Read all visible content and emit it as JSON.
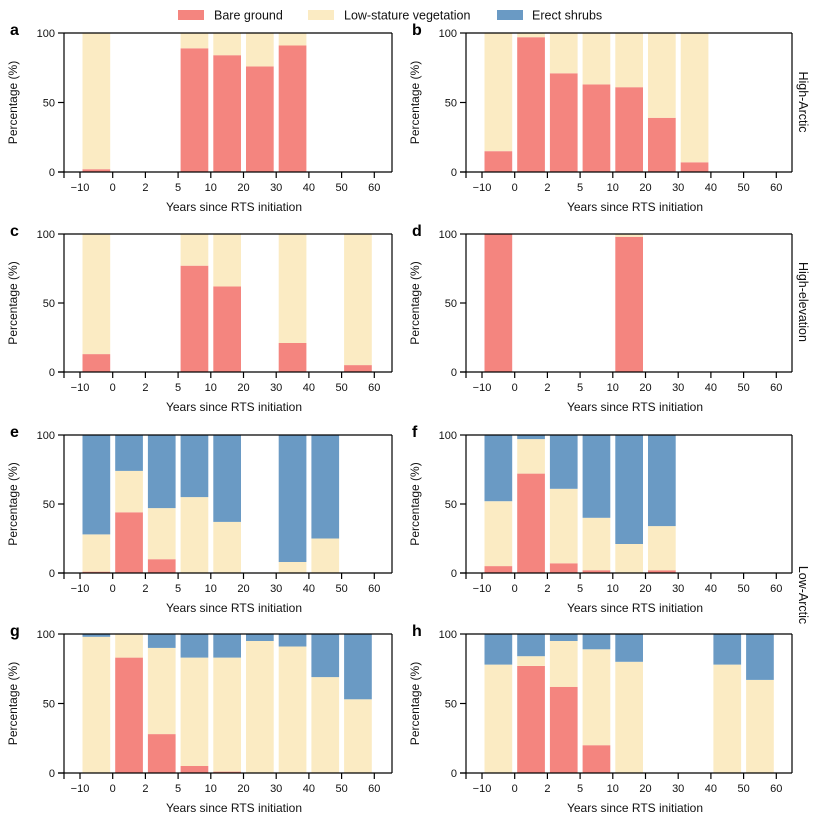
{
  "legend": [
    {
      "key": "bare",
      "label": "Bare ground",
      "color": "#f4857f"
    },
    {
      "key": "low",
      "label": "Low-stature vegetation",
      "color": "#fbebc3"
    },
    {
      "key": "shrub",
      "label": "Erect shrubs",
      "color": "#6a9ac4"
    }
  ],
  "row_labels": [
    "High-Arctic",
    "High-elevation",
    "Low-Arctic"
  ],
  "chart_data": [
    {
      "panel": "a",
      "type": "bar",
      "stacked": true,
      "title": "",
      "xlabel": "Years since RTS initiation",
      "ylabel": "Percentage (%)",
      "ylim": [
        0,
        100
      ],
      "yticks": [
        0,
        50,
        100
      ],
      "x_ticks": [
        "−10",
        "0",
        "2",
        "5",
        "10",
        "20",
        "30",
        "40",
        "50",
        "60"
      ],
      "categories": [
        "-10–0",
        "0–2",
        "2–5",
        "5–10",
        "10–20",
        "20–30",
        "30–40",
        "40–50",
        "50–60"
      ],
      "series": [
        {
          "name": "Bare ground",
          "values": [
            2,
            null,
            null,
            89,
            84,
            76,
            91,
            null,
            null
          ]
        },
        {
          "name": "Low-stature vegetation",
          "values": [
            98,
            null,
            null,
            11,
            16,
            24,
            9,
            null,
            null
          ]
        },
        {
          "name": "Erect shrubs",
          "values": [
            0,
            null,
            null,
            0,
            0,
            0,
            0,
            null,
            null
          ]
        }
      ]
    },
    {
      "panel": "b",
      "type": "bar",
      "stacked": true,
      "title": "",
      "xlabel": "Years since RTS initiation",
      "ylabel": "Percentage (%)",
      "ylim": [
        0,
        100
      ],
      "yticks": [
        0,
        50,
        100
      ],
      "x_ticks": [
        "−10",
        "0",
        "2",
        "5",
        "10",
        "20",
        "30",
        "40",
        "50",
        "60"
      ],
      "categories": [
        "-10–0",
        "0–2",
        "2–5",
        "5–10",
        "10–20",
        "20–30",
        "30–40",
        "40–50",
        "50–60"
      ],
      "series": [
        {
          "name": "Bare ground",
          "values": [
            15,
            97,
            71,
            63,
            61,
            39,
            7,
            null,
            null
          ]
        },
        {
          "name": "Low-stature vegetation",
          "values": [
            85,
            3,
            29,
            37,
            39,
            61,
            93,
            null,
            null
          ]
        },
        {
          "name": "Erect shrubs",
          "values": [
            0,
            0,
            0,
            0,
            0,
            0,
            0,
            null,
            null
          ]
        }
      ]
    },
    {
      "panel": "c",
      "type": "bar",
      "stacked": true,
      "title": "",
      "xlabel": "Years since RTS initiation",
      "ylabel": "Percentage (%)",
      "ylim": [
        0,
        100
      ],
      "yticks": [
        0,
        50,
        100
      ],
      "x_ticks": [
        "−10",
        "0",
        "2",
        "5",
        "10",
        "20",
        "30",
        "40",
        "50",
        "60"
      ],
      "categories": [
        "-10–0",
        "0–2",
        "2–5",
        "5–10",
        "10–20",
        "20–30",
        "30–40",
        "40–50",
        "50–60"
      ],
      "series": [
        {
          "name": "Bare ground",
          "values": [
            13,
            null,
            null,
            77,
            62,
            null,
            21,
            null,
            5
          ]
        },
        {
          "name": "Low-stature vegetation",
          "values": [
            87,
            null,
            null,
            23,
            38,
            null,
            79,
            null,
            95
          ]
        },
        {
          "name": "Erect shrubs",
          "values": [
            0,
            null,
            null,
            0,
            0,
            null,
            0,
            null,
            0
          ]
        }
      ]
    },
    {
      "panel": "d",
      "type": "bar",
      "stacked": true,
      "title": "",
      "xlabel": "Years since RTS initiation",
      "ylabel": "Percentage (%)",
      "ylim": [
        0,
        100
      ],
      "yticks": [
        0,
        50,
        100
      ],
      "x_ticks": [
        "−10",
        "0",
        "2",
        "5",
        "10",
        "20",
        "30",
        "40",
        "50",
        "60"
      ],
      "categories": [
        "-10–0",
        "0–2",
        "2–5",
        "5–10",
        "10–20",
        "20–30",
        "30–40",
        "40–50",
        "50–60"
      ],
      "series": [
        {
          "name": "Bare ground",
          "values": [
            100,
            null,
            null,
            null,
            98,
            null,
            null,
            null,
            null
          ]
        },
        {
          "name": "Low-stature vegetation",
          "values": [
            0,
            null,
            null,
            null,
            2,
            null,
            null,
            null,
            null
          ]
        },
        {
          "name": "Erect shrubs",
          "values": [
            0,
            null,
            null,
            null,
            0,
            null,
            null,
            null,
            null
          ]
        }
      ]
    },
    {
      "panel": "e",
      "type": "bar",
      "stacked": true,
      "title": "",
      "xlabel": "Years since RTS initiation",
      "ylabel": "Percentage (%)",
      "ylim": [
        0,
        100
      ],
      "yticks": [
        0,
        50,
        100
      ],
      "x_ticks": [
        "−10",
        "0",
        "2",
        "5",
        "10",
        "20",
        "30",
        "40",
        "50",
        "60"
      ],
      "categories": [
        "-10–0",
        "0–2",
        "2–5",
        "5–10",
        "10–20",
        "20–30",
        "30–40",
        "40–50",
        "50–60"
      ],
      "series": [
        {
          "name": "Bare ground",
          "values": [
            1,
            44,
            10,
            0,
            0,
            null,
            0,
            0,
            null
          ]
        },
        {
          "name": "Low-stature vegetation",
          "values": [
            27,
            30,
            37,
            55,
            37,
            null,
            8,
            25,
            null
          ]
        },
        {
          "name": "Erect shrubs",
          "values": [
            72,
            26,
            53,
            45,
            63,
            null,
            92,
            75,
            null
          ]
        }
      ]
    },
    {
      "panel": "f",
      "type": "bar",
      "stacked": true,
      "title": "",
      "xlabel": "Years since RTS initiation",
      "ylabel": "Percentage (%)",
      "ylim": [
        0,
        100
      ],
      "yticks": [
        0,
        50,
        100
      ],
      "x_ticks": [
        "−10",
        "0",
        "2",
        "5",
        "10",
        "20",
        "30",
        "40",
        "50",
        "60"
      ],
      "categories": [
        "-10–0",
        "0–2",
        "2–5",
        "5–10",
        "10–20",
        "20–30",
        "30–40",
        "40–50",
        "50–60"
      ],
      "series": [
        {
          "name": "Bare ground",
          "values": [
            5,
            72,
            7,
            2,
            0,
            2,
            null,
            null,
            null
          ]
        },
        {
          "name": "Low-stature vegetation",
          "values": [
            47,
            25,
            54,
            38,
            21,
            32,
            null,
            null,
            null
          ]
        },
        {
          "name": "Erect shrubs",
          "values": [
            48,
            3,
            39,
            60,
            79,
            66,
            null,
            null,
            null
          ]
        }
      ]
    },
    {
      "panel": "g",
      "type": "bar",
      "stacked": true,
      "title": "",
      "xlabel": "Years since RTS initiation",
      "ylabel": "Percentage (%)",
      "ylim": [
        0,
        100
      ],
      "yticks": [
        0,
        50,
        100
      ],
      "x_ticks": [
        "−10",
        "0",
        "2",
        "5",
        "10",
        "20",
        "30",
        "40",
        "50",
        "60"
      ],
      "categories": [
        "-10–0",
        "0–2",
        "2–5",
        "5–10",
        "10–20",
        "20–30",
        "30–40",
        "40–50",
        "50–60"
      ],
      "series": [
        {
          "name": "Bare ground",
          "values": [
            0,
            83,
            28,
            5,
            1,
            0,
            0,
            0,
            0
          ]
        },
        {
          "name": "Low-stature vegetation",
          "values": [
            98,
            17,
            62,
            78,
            82,
            95,
            91,
            69,
            53
          ]
        },
        {
          "name": "Erect shrubs",
          "values": [
            2,
            0,
            10,
            17,
            17,
            5,
            9,
            31,
            47
          ]
        }
      ]
    },
    {
      "panel": "h",
      "type": "bar",
      "stacked": true,
      "title": "",
      "xlabel": "Years since RTS initiation",
      "ylabel": "Percentage (%)",
      "ylim": [
        0,
        100
      ],
      "yticks": [
        0,
        50,
        100
      ],
      "x_ticks": [
        "−10",
        "0",
        "2",
        "5",
        "10",
        "20",
        "30",
        "40",
        "50",
        "60"
      ],
      "categories": [
        "-10–0",
        "0–2",
        "2–5",
        "5–10",
        "10–20",
        "20–30",
        "30–40",
        "40–50",
        "50–60"
      ],
      "series": [
        {
          "name": "Bare ground",
          "values": [
            0,
            77,
            62,
            20,
            0,
            null,
            null,
            0,
            0
          ]
        },
        {
          "name": "Low-stature vegetation",
          "values": [
            78,
            7,
            33,
            69,
            80,
            null,
            null,
            78,
            67
          ]
        },
        {
          "name": "Erect shrubs",
          "values": [
            22,
            16,
            5,
            11,
            20,
            null,
            null,
            22,
            33
          ]
        }
      ]
    }
  ]
}
